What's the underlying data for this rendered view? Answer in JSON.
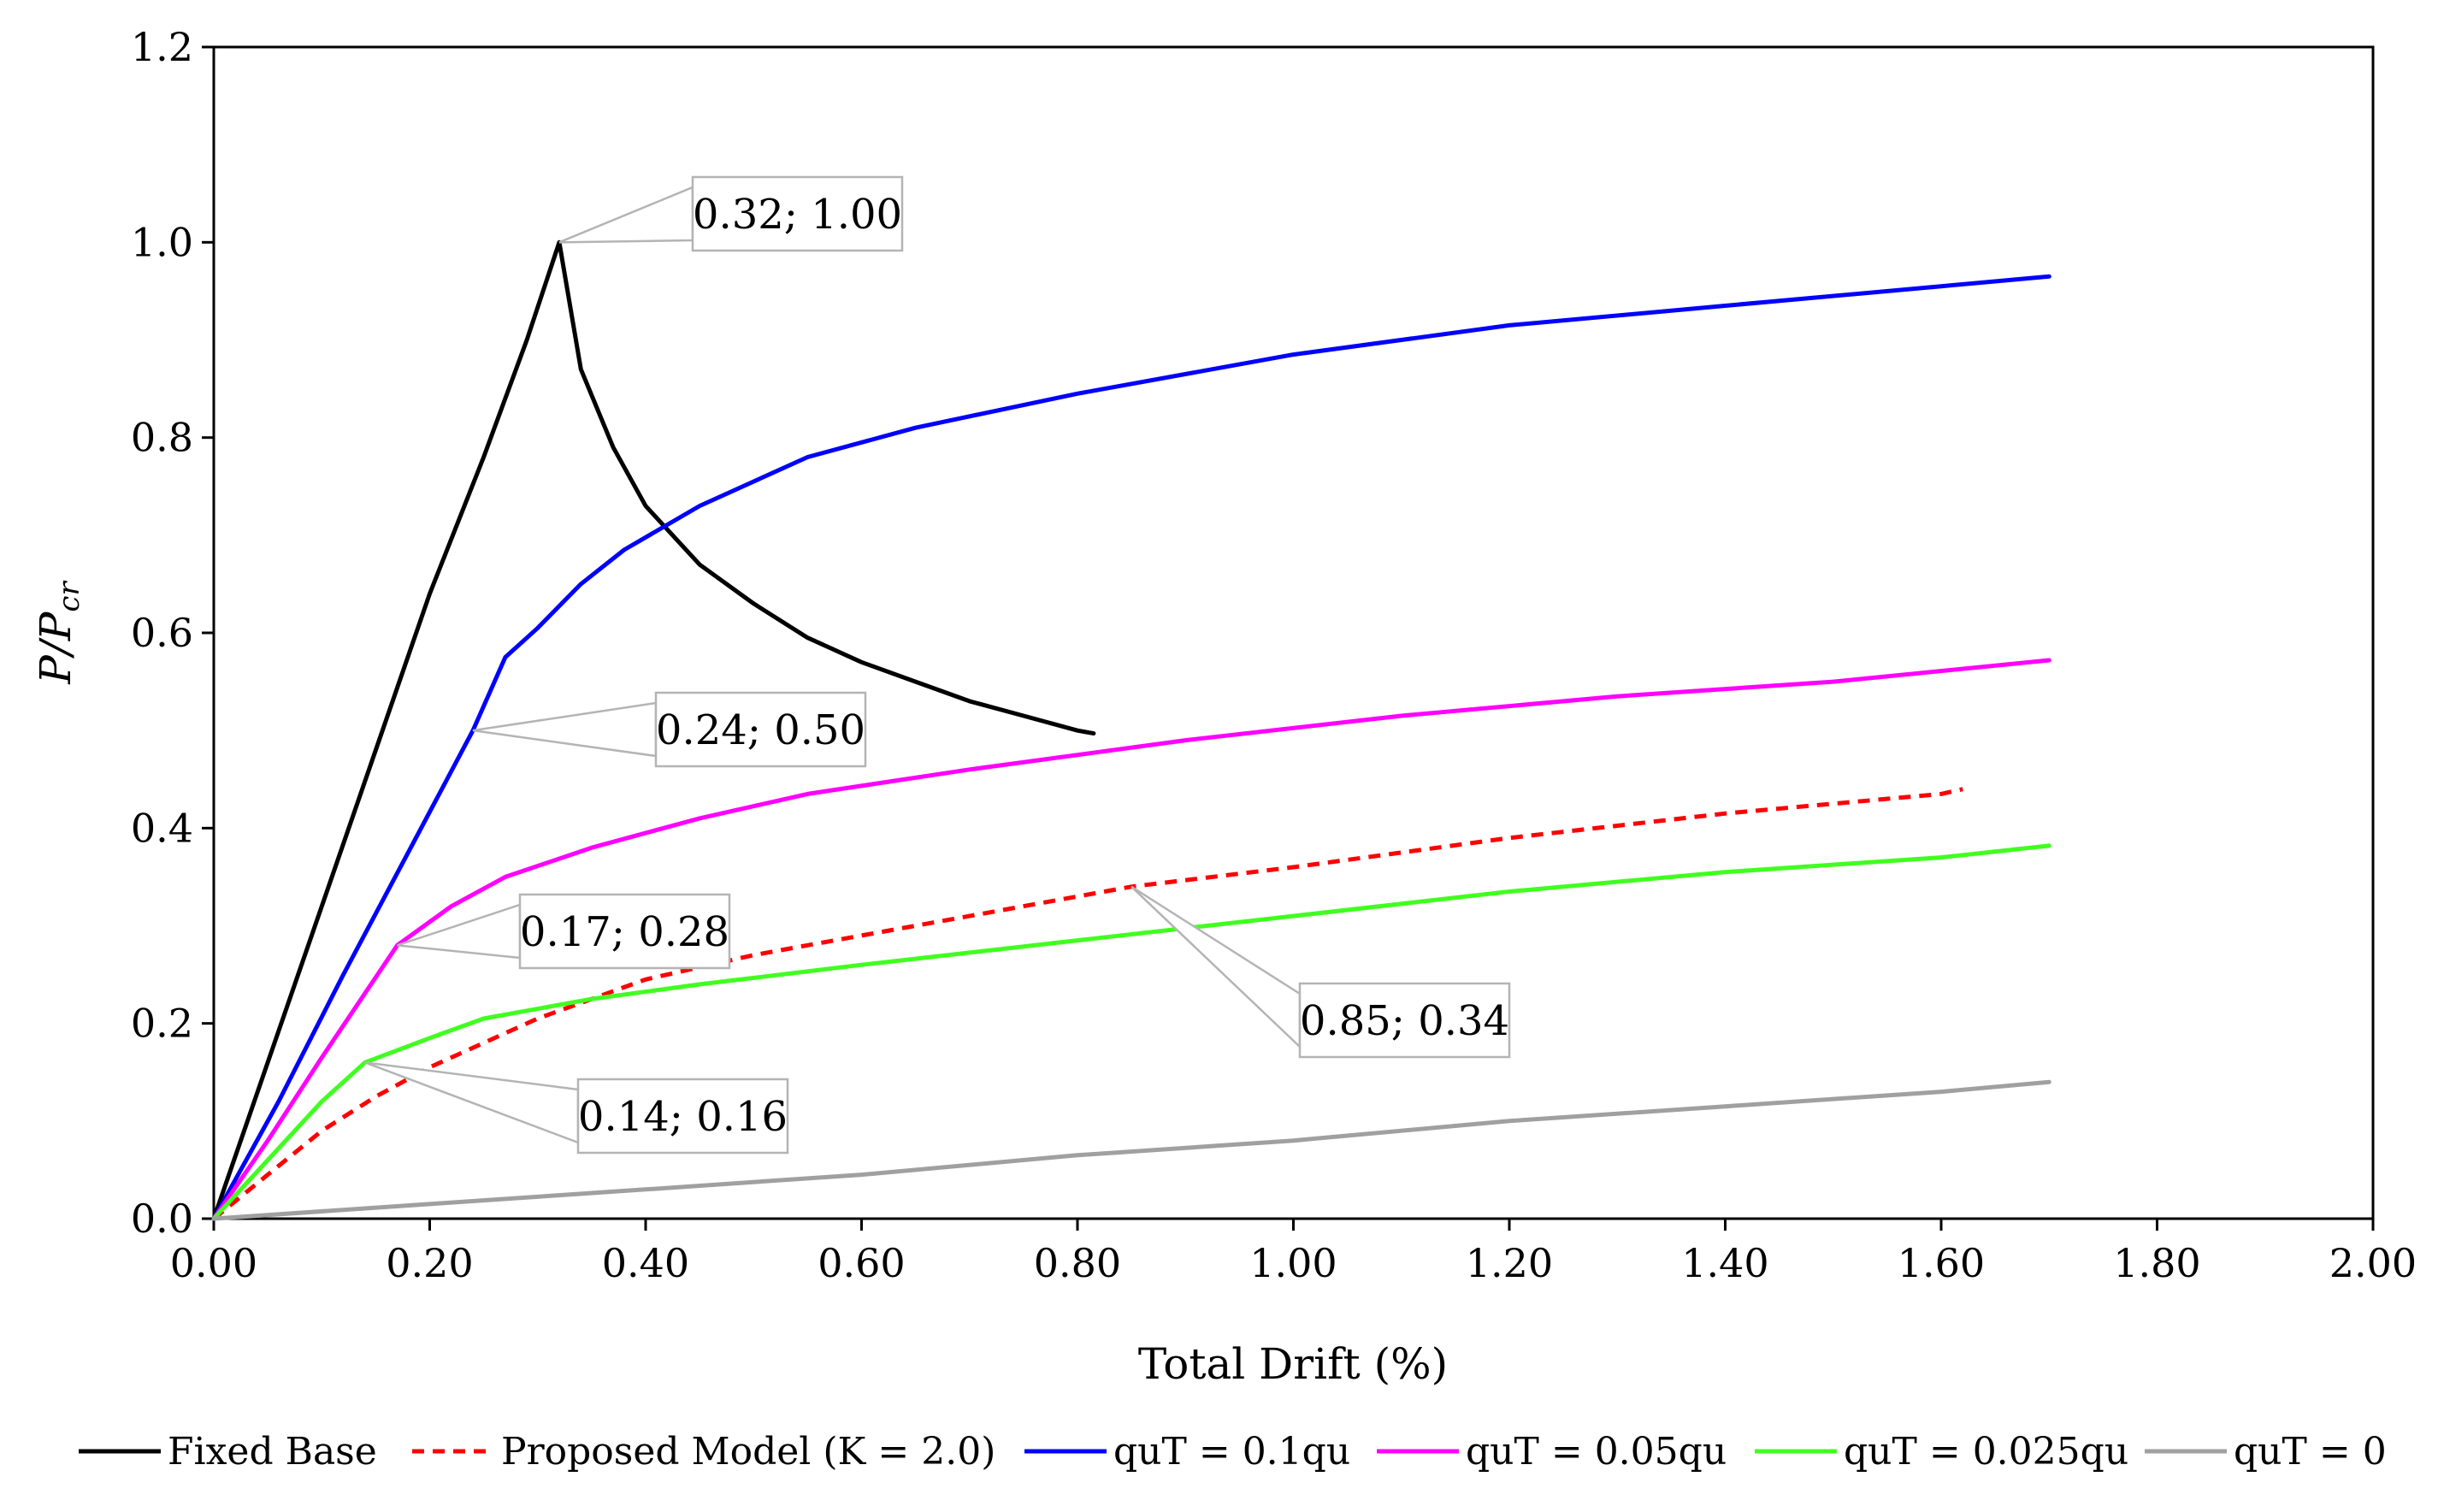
{
  "chart_data": {
    "type": "line",
    "title": "",
    "xlabel": "Total Drift (%)",
    "ylabel_main": "P/P",
    "ylabel_sub": "cr",
    "xlim": [
      0,
      2
    ],
    "ylim": [
      0,
      1.2
    ],
    "x_ticks": [
      "0.00",
      "0.20",
      "0.40",
      "0.60",
      "0.80",
      "1.00",
      "1.20",
      "1.40",
      "1.60",
      "1.80",
      "2.00"
    ],
    "y_ticks": [
      "0.0",
      "0.2",
      "0.4",
      "0.6",
      "0.8",
      "1.0",
      "1.2"
    ],
    "grid": false,
    "legend_position": "bottom",
    "series": [
      {
        "name": "Fixed Base",
        "color": "#000000",
        "dash": "solid",
        "points": [
          [
            0,
            0
          ],
          [
            0.05,
            0.16
          ],
          [
            0.1,
            0.32
          ],
          [
            0.15,
            0.48
          ],
          [
            0.2,
            0.64
          ],
          [
            0.25,
            0.78
          ],
          [
            0.29,
            0.9
          ],
          [
            0.32,
            1.0
          ],
          [
            0.34,
            0.87
          ],
          [
            0.37,
            0.79
          ],
          [
            0.4,
            0.73
          ],
          [
            0.45,
            0.67
          ],
          [
            0.5,
            0.63
          ],
          [
            0.55,
            0.595
          ],
          [
            0.6,
            0.57
          ],
          [
            0.65,
            0.55
          ],
          [
            0.7,
            0.53
          ],
          [
            0.75,
            0.515
          ],
          [
            0.8,
            0.5
          ],
          [
            0.815,
            0.497
          ]
        ]
      },
      {
        "name": "Proposed Model (K = 2.0)",
        "color": "#ff0000",
        "dash": "dashed",
        "points": [
          [
            0,
            0
          ],
          [
            0.05,
            0.045
          ],
          [
            0.1,
            0.09
          ],
          [
            0.15,
            0.125
          ],
          [
            0.2,
            0.155
          ],
          [
            0.25,
            0.18
          ],
          [
            0.3,
            0.205
          ],
          [
            0.35,
            0.225
          ],
          [
            0.4,
            0.245
          ],
          [
            0.5,
            0.27
          ],
          [
            0.6,
            0.29
          ],
          [
            0.7,
            0.31
          ],
          [
            0.85,
            0.34
          ],
          [
            1.0,
            0.36
          ],
          [
            1.2,
            0.39
          ],
          [
            1.4,
            0.415
          ],
          [
            1.6,
            0.435
          ],
          [
            1.62,
            0.44
          ]
        ]
      },
      {
        "name": "quT = 0.1qu",
        "color": "#0000ff",
        "dash": "solid",
        "points": [
          [
            0,
            0
          ],
          [
            0.06,
            0.12
          ],
          [
            0.12,
            0.25
          ],
          [
            0.18,
            0.375
          ],
          [
            0.24,
            0.5
          ],
          [
            0.27,
            0.575
          ],
          [
            0.3,
            0.605
          ],
          [
            0.34,
            0.65
          ],
          [
            0.38,
            0.685
          ],
          [
            0.45,
            0.73
          ],
          [
            0.55,
            0.78
          ],
          [
            0.65,
            0.81
          ],
          [
            0.8,
            0.845
          ],
          [
            1.0,
            0.885
          ],
          [
            1.2,
            0.915
          ],
          [
            1.4,
            0.935
          ],
          [
            1.6,
            0.955
          ],
          [
            1.7,
            0.965
          ]
        ]
      },
      {
        "name": "quT = 0.05qu",
        "color": "#ff00ff",
        "dash": "solid",
        "points": [
          [
            0,
            0
          ],
          [
            0.05,
            0.08
          ],
          [
            0.1,
            0.165
          ],
          [
            0.17,
            0.28
          ],
          [
            0.22,
            0.32
          ],
          [
            0.27,
            0.35
          ],
          [
            0.35,
            0.38
          ],
          [
            0.45,
            0.41
          ],
          [
            0.55,
            0.435
          ],
          [
            0.7,
            0.46
          ],
          [
            0.9,
            0.49
          ],
          [
            1.1,
            0.515
          ],
          [
            1.3,
            0.535
          ],
          [
            1.5,
            0.55
          ],
          [
            1.7,
            0.572
          ]
        ]
      },
      {
        "name": "quT = 0.025qu",
        "color": "#40ff1f",
        "dash": "solid",
        "points": [
          [
            0,
            0
          ],
          [
            0.05,
            0.06
          ],
          [
            0.1,
            0.12
          ],
          [
            0.14,
            0.16
          ],
          [
            0.2,
            0.185
          ],
          [
            0.25,
            0.205
          ],
          [
            0.35,
            0.225
          ],
          [
            0.45,
            0.24
          ],
          [
            0.6,
            0.26
          ],
          [
            0.8,
            0.285
          ],
          [
            1.0,
            0.31
          ],
          [
            1.2,
            0.335
          ],
          [
            1.4,
            0.355
          ],
          [
            1.6,
            0.37
          ],
          [
            1.7,
            0.382
          ]
        ]
      },
      {
        "name": "quT = 0",
        "color": "#a0a0a0",
        "dash": "solid",
        "points": [
          [
            0,
            0
          ],
          [
            0.2,
            0.015
          ],
          [
            0.4,
            0.03
          ],
          [
            0.6,
            0.045
          ],
          [
            0.8,
            0.065
          ],
          [
            1.0,
            0.08
          ],
          [
            1.2,
            0.1
          ],
          [
            1.4,
            0.115
          ],
          [
            1.6,
            0.13
          ],
          [
            1.7,
            0.14
          ]
        ]
      }
    ],
    "annotations": [
      {
        "text": "0.32; 1.00",
        "x": 0.32,
        "y": 1.0
      },
      {
        "text": "0.24; 0.50",
        "x": 0.24,
        "y": 0.5
      },
      {
        "text": "0.17; 0.28",
        "x": 0.17,
        "y": 0.28
      },
      {
        "text": "0.85; 0.34",
        "x": 0.85,
        "y": 0.34
      },
      {
        "text": "0.14; 0.16",
        "x": 0.14,
        "y": 0.16
      }
    ]
  }
}
